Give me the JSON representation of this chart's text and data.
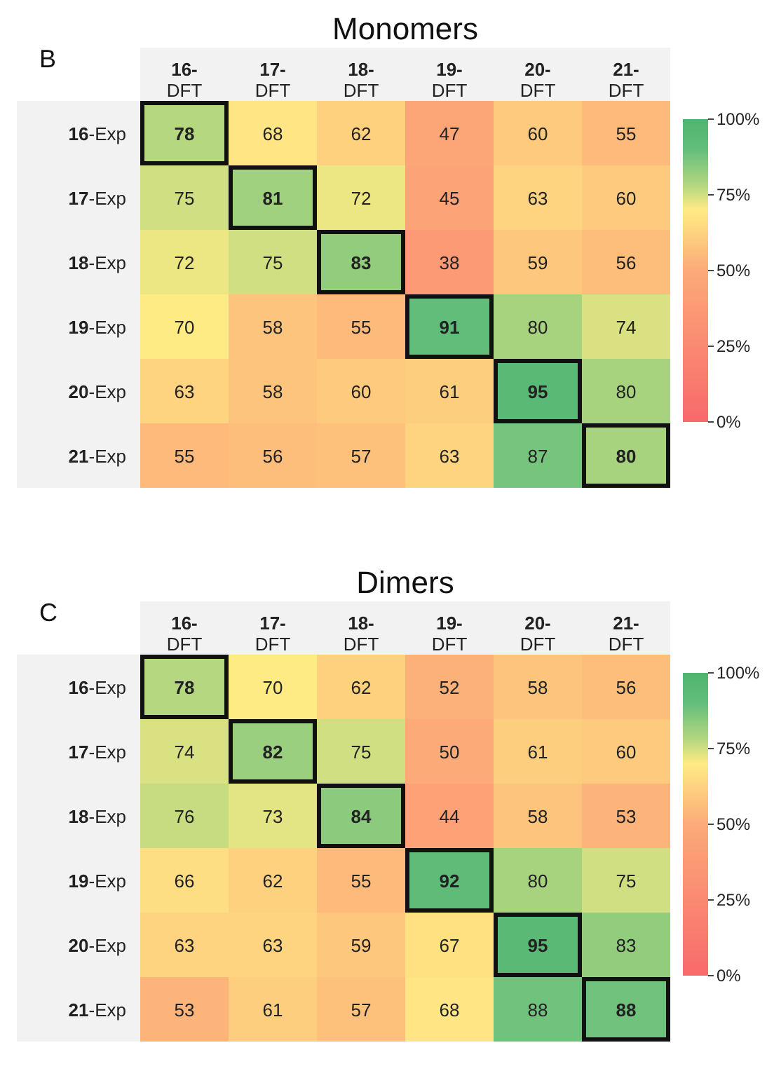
{
  "chart_data": [
    {
      "type": "heatmap",
      "data_labels": true,
      "title": "Monomers",
      "annotations": [
        "B"
      ],
      "categories": [
        "16-DFT",
        "17-DFT",
        "18-DFT",
        "19-DFT",
        "20-DFT",
        "21-DFT"
      ],
      "y_categories": [
        "16-Exp",
        "17-Exp",
        "18-Exp",
        "19-Exp",
        "20-Exp",
        "21-Exp"
      ],
      "cells": [
        [
          78,
          68,
          62,
          47,
          60,
          55
        ],
        [
          75,
          81,
          72,
          45,
          63,
          60
        ],
        [
          72,
          75,
          83,
          38,
          59,
          56
        ],
        [
          70,
          58,
          55,
          91,
          80,
          74
        ],
        [
          63,
          58,
          60,
          61,
          95,
          80
        ],
        [
          55,
          56,
          57,
          63,
          87,
          80
        ]
      ],
      "clim": [
        0,
        100
      ],
      "cticks": [
        {
          "value": 0,
          "label": "0%"
        },
        {
          "value": 25,
          "label": "25%"
        },
        {
          "value": 50,
          "label": "50%"
        },
        {
          "value": 75,
          "label": "75%"
        },
        {
          "value": 100,
          "label": "100%"
        }
      ]
    },
    {
      "type": "heatmap",
      "data_labels": true,
      "title": "Dimers",
      "annotations": [
        "C"
      ],
      "categories": [
        "16-DFT",
        "17-DFT",
        "18-DFT",
        "19-DFT",
        "20-DFT",
        "21-DFT"
      ],
      "y_categories": [
        "16-Exp",
        "17-Exp",
        "18-Exp",
        "19-Exp",
        "20-Exp",
        "21-Exp"
      ],
      "cells": [
        [
          78,
          70,
          62,
          52,
          58,
          56
        ],
        [
          74,
          82,
          75,
          50,
          61,
          60
        ],
        [
          76,
          73,
          84,
          44,
          58,
          53
        ],
        [
          66,
          62,
          55,
          92,
          80,
          75
        ],
        [
          63,
          63,
          59,
          67,
          95,
          83
        ],
        [
          53,
          61,
          57,
          68,
          88,
          88
        ]
      ],
      "clim": [
        0,
        100
      ],
      "cticks": [
        {
          "value": 0,
          "label": "0%"
        },
        {
          "value": 25,
          "label": "25%"
        },
        {
          "value": 50,
          "label": "50%"
        },
        {
          "value": 75,
          "label": "75%"
        },
        {
          "value": 100,
          "label": "100%"
        }
      ]
    }
  ]
}
